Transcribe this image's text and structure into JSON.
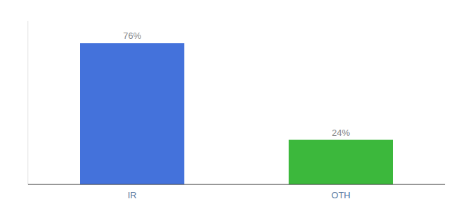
{
  "chart_data": {
    "type": "bar",
    "categories": [
      "IR",
      "OTH"
    ],
    "values": [
      76,
      24
    ],
    "value_labels": [
      "76%",
      "24%"
    ],
    "colors": [
      "#4472db",
      "#3cb83c"
    ],
    "ylim": [
      0,
      88
    ],
    "data_labels": true,
    "tick_labels": "x",
    "grid": false
  }
}
